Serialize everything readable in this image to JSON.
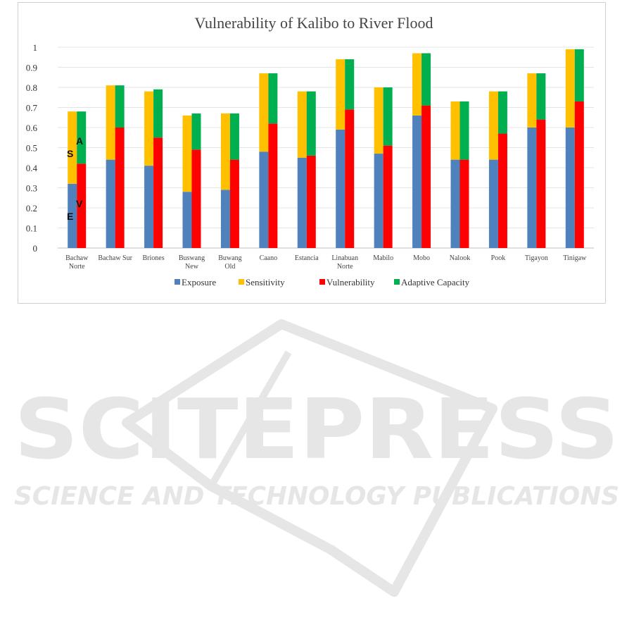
{
  "chart_data": {
    "type": "bar",
    "title": "Vulnerability of Kalibo to River Flood",
    "xlabel": "",
    "ylabel": "",
    "ylim": [
      0,
      1
    ],
    "yticks": [
      "0",
      "0.1",
      "0.2",
      "0.3",
      "0.4",
      "0.5",
      "0.6",
      "0.7",
      "0.8",
      "0.9",
      "1"
    ],
    "grid": true,
    "legend_position": "bottom",
    "categories": [
      [
        "Bachaw",
        "Norte"
      ],
      [
        "Bachaw Sur"
      ],
      [
        "Briones"
      ],
      [
        "Buswang",
        "New"
      ],
      [
        "Buwang",
        "Old"
      ],
      [
        "Caano"
      ],
      [
        "Estancia"
      ],
      [
        "Linabuan",
        "Norte"
      ],
      [
        "Mabilo"
      ],
      [
        "Mobo"
      ],
      [
        "Nalook"
      ],
      [
        "Pook"
      ],
      [
        "Tigayon"
      ],
      [
        "Tinigaw"
      ]
    ],
    "stacks": [
      {
        "stack": "left",
        "series": [
          {
            "name": "Exposure",
            "color": "#4f81bd",
            "values": [
              0.32,
              0.44,
              0.41,
              0.28,
              0.29,
              0.48,
              0.45,
              0.59,
              0.47,
              0.66,
              0.44,
              0.44,
              0.6,
              0.6
            ]
          },
          {
            "name": "Sensitivity",
            "color": "#ffc000",
            "values": [
              0.36,
              0.37,
              0.37,
              0.38,
              0.38,
              0.39,
              0.33,
              0.35,
              0.33,
              0.31,
              0.29,
              0.34,
              0.27,
              0.39
            ]
          }
        ]
      },
      {
        "stack": "right",
        "series": [
          {
            "name": "Vulnerability",
            "color": "#ff0000",
            "values": [
              0.42,
              0.6,
              0.55,
              0.49,
              0.44,
              0.62,
              0.46,
              0.69,
              0.51,
              0.71,
              0.44,
              0.57,
              0.64,
              0.73
            ]
          },
          {
            "name": "Adaptive Capacity",
            "color": "#00b050",
            "values": [
              0.26,
              0.21,
              0.24,
              0.18,
              0.23,
              0.25,
              0.32,
              0.25,
              0.29,
              0.26,
              0.29,
              0.21,
              0.23,
              0.26
            ]
          }
        ]
      }
    ],
    "annotations": [
      "A",
      "S",
      "V",
      "E"
    ]
  },
  "watermark": {
    "brand": "SCITEPRESS",
    "tagline": "SCIENCE AND TECHNOLOGY PUBLICATIONS"
  }
}
